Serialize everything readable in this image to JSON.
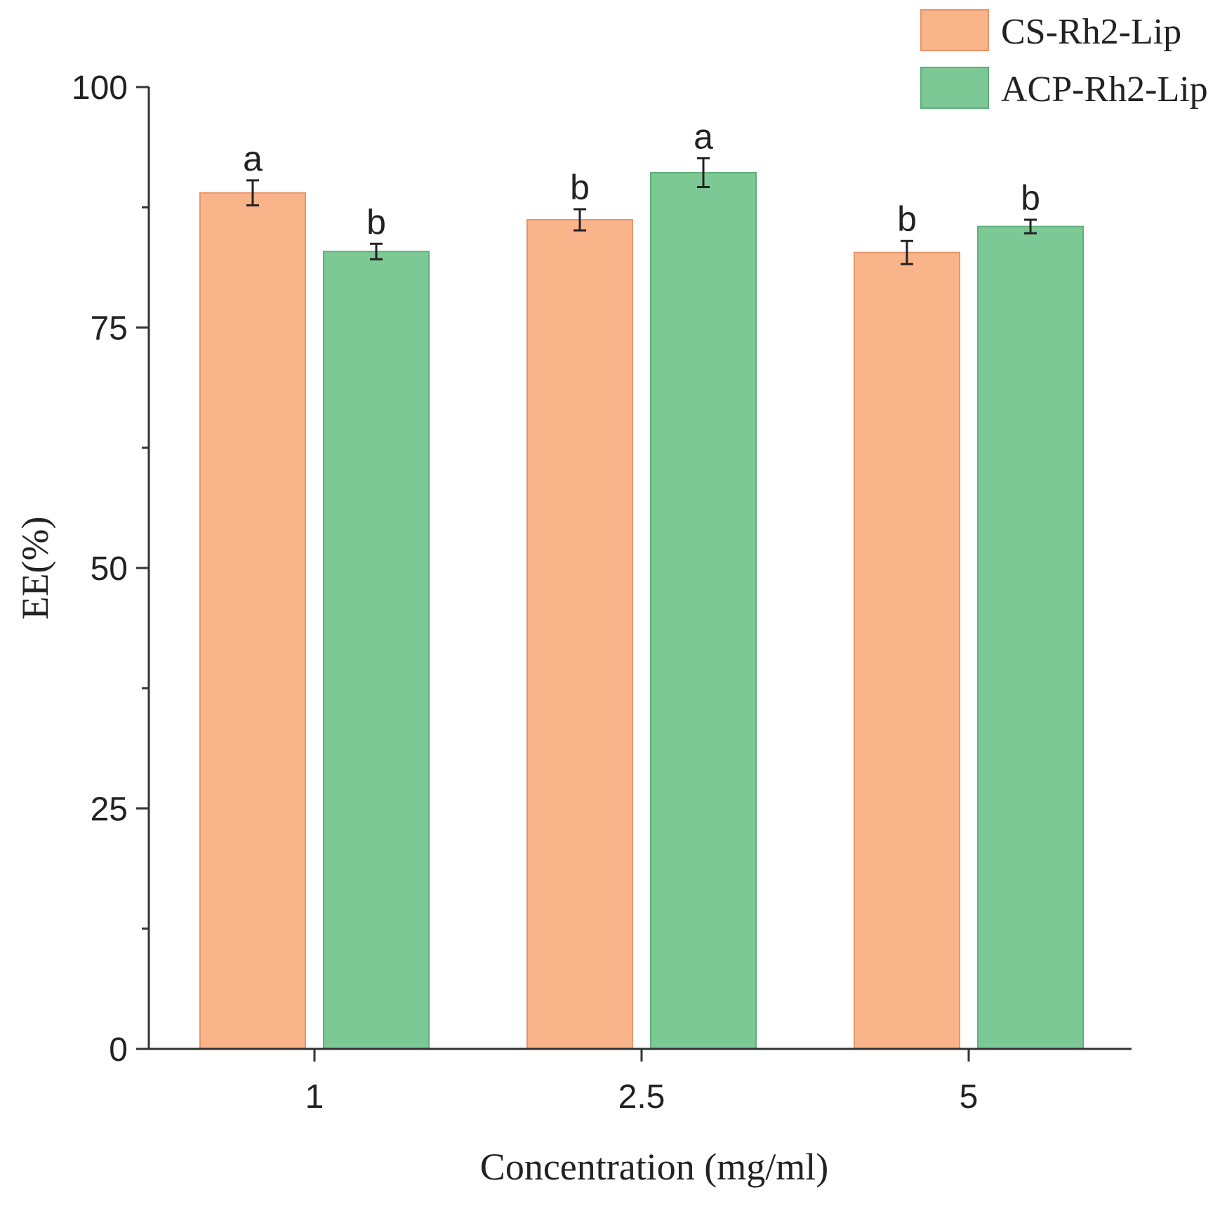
{
  "chart_data": {
    "type": "bar",
    "title": "",
    "xlabel": "Concentration (mg/ml)",
    "ylabel": "EE(%)",
    "categories": [
      "1",
      "2.5",
      "5"
    ],
    "ylim": [
      0,
      100
    ],
    "yticks": [
      0,
      25,
      50,
      75,
      100
    ],
    "grid": false,
    "legend_position": "top-right",
    "series": [
      {
        "name": "CS-Rh2-Lip",
        "color": "#F9B48A",
        "edge_color": "#E8946A",
        "values": [
          89,
          86.2,
          82.8
        ],
        "errors": [
          1.3,
          1.1,
          1.2
        ],
        "significance": [
          "a",
          "b",
          "b"
        ]
      },
      {
        "name": "ACP-Rh2-Lip",
        "color": "#7DC995",
        "edge_color": "#5FAF78",
        "values": [
          82.9,
          91.1,
          85.5
        ],
        "errors": [
          0.8,
          1.5,
          0.7
        ],
        "significance": [
          "b",
          "a",
          "b"
        ]
      }
    ]
  }
}
